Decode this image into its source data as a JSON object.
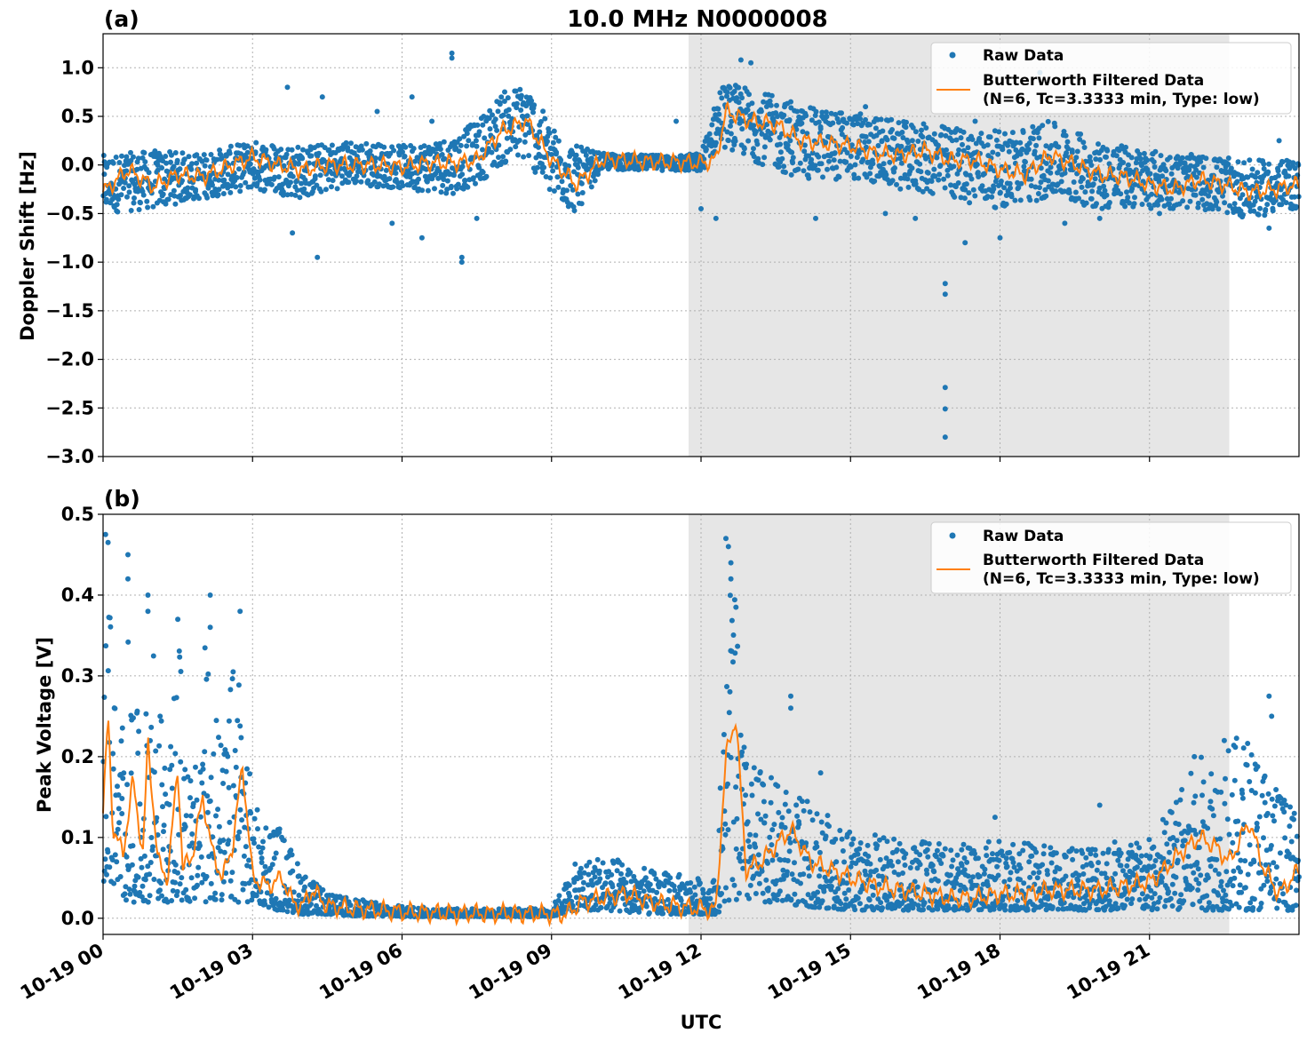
{
  "figure": {
    "title": "10.0 MHz N0000008",
    "xlabel": "UTC",
    "colors": {
      "raw": "#1f77b4",
      "filtered": "#ff7f0e",
      "shade": "#e6e6e6",
      "grid": "#b0b0b0"
    }
  },
  "chart_data": [
    {
      "type": "scatter",
      "panel_label": "(a)",
      "ylabel": "Doppler Shift [Hz]",
      "xlim": [
        "10-19 00",
        "10-20 00"
      ],
      "ylim": [
        -3.0,
        1.35
      ],
      "x_ticks": [
        "10-19 00",
        "10-19 03",
        "10-19 06",
        "10-19 09",
        "10-19 12",
        "10-19 15",
        "10-19 18",
        "10-19 21"
      ],
      "x_tick_labels_visible": false,
      "y_ticks": [
        1.0,
        0.5,
        0.0,
        -0.5,
        -1.0,
        -1.5,
        -2.0,
        -2.5,
        -3.0
      ],
      "y_tick_labels": [
        "1.0",
        "0.5",
        "0.0",
        "−0.5",
        "−1.0",
        "−1.5",
        "−2.0",
        "−2.5",
        "−3.0"
      ],
      "grid": true,
      "shaded_region_hours": [
        11.75,
        22.6
      ],
      "legend": {
        "placement": "top-right",
        "entries": [
          "Raw Data",
          "Butterworth Filtered Data",
          "(N=6, Tc=3.3333 min, Type: low)"
        ]
      },
      "series": [
        {
          "name": "Butterworth Filtered Data",
          "style": "line",
          "x_hours": [
            0,
            0.5,
            1,
            1.5,
            2,
            2.5,
            3,
            3.5,
            4,
            4.5,
            5,
            5.5,
            6,
            6.5,
            7,
            7.5,
            8,
            8.5,
            9,
            9.5,
            10,
            10.5,
            11,
            11.5,
            12,
            12.3,
            12.5,
            13,
            13.5,
            14,
            14.5,
            15,
            15.5,
            16,
            16.5,
            17,
            17.5,
            18,
            18.5,
            19,
            19.5,
            20,
            20.5,
            21,
            21.5,
            22,
            22.5,
            23,
            23.5,
            24
          ],
          "y": [
            -0.28,
            -0.05,
            -0.22,
            -0.1,
            -0.12,
            -0.02,
            0.08,
            0.0,
            -0.05,
            0.0,
            0.0,
            0.0,
            -0.02,
            0.02,
            0.02,
            0.05,
            0.35,
            0.45,
            0.05,
            -0.2,
            0.05,
            0.05,
            0.03,
            0.03,
            0.02,
            0.05,
            0.55,
            0.45,
            0.42,
            0.25,
            0.22,
            0.2,
            0.12,
            0.1,
            0.15,
            0.05,
            0.05,
            -0.05,
            -0.1,
            0.1,
            0.0,
            -0.1,
            -0.12,
            -0.2,
            -0.25,
            -0.15,
            -0.2,
            -0.28,
            -0.25,
            -0.2
          ]
        },
        {
          "name": "Raw Data",
          "style": "points",
          "envelope_hours": [
            0,
            1,
            2,
            3,
            4,
            5,
            6,
            7,
            7.5,
            8,
            8.5,
            9,
            9.5,
            10,
            11,
            12,
            12.4,
            13,
            14,
            15,
            16,
            17,
            18,
            19,
            20,
            21,
            22,
            23,
            24
          ],
          "upper": [
            0.1,
            0.15,
            0.12,
            0.25,
            0.2,
            0.25,
            0.2,
            0.3,
            0.45,
            0.75,
            0.85,
            0.4,
            0.2,
            0.12,
            0.1,
            0.12,
            0.85,
            0.8,
            0.6,
            0.55,
            0.45,
            0.4,
            0.35,
            0.45,
            0.25,
            0.15,
            0.1,
            0.05,
            0.05
          ],
          "lower": [
            -0.5,
            -0.45,
            -0.35,
            -0.25,
            -0.35,
            -0.2,
            -0.25,
            -0.3,
            -0.2,
            0.0,
            0.05,
            -0.35,
            -0.5,
            -0.05,
            -0.05,
            -0.08,
            0.2,
            0.05,
            -0.15,
            -0.15,
            -0.25,
            -0.35,
            -0.45,
            -0.35,
            -0.45,
            -0.45,
            -0.45,
            -0.55,
            -0.45
          ],
          "outliers": [
            [
              2.5,
              -0.2
            ],
            [
              3.7,
              0.8
            ],
            [
              3.8,
              -0.7
            ],
            [
              4.3,
              -0.95
            ],
            [
              4.4,
              0.7
            ],
            [
              5.5,
              0.55
            ],
            [
              5.8,
              -0.6
            ],
            [
              6.2,
              0.7
            ],
            [
              6.4,
              -0.75
            ],
            [
              6.6,
              0.45
            ],
            [
              7.0,
              1.15
            ],
            [
              7.0,
              1.1
            ],
            [
              7.2,
              -1.0
            ],
            [
              7.2,
              -0.95
            ],
            [
              7.4,
              0.4
            ],
            [
              7.5,
              -0.55
            ],
            [
              11.5,
              0.45
            ],
            [
              12.0,
              -0.45
            ],
            [
              12.3,
              -0.55
            ],
            [
              12.8,
              1.08
            ],
            [
              13.0,
              1.05
            ],
            [
              13.8,
              0.65
            ],
            [
              14.3,
              -0.55
            ],
            [
              15.3,
              0.6
            ],
            [
              15.7,
              -0.5
            ],
            [
              16.3,
              -0.55
            ],
            [
              16.9,
              -1.22
            ],
            [
              16.9,
              -1.33
            ],
            [
              16.9,
              -2.29
            ],
            [
              16.9,
              -2.51
            ],
            [
              16.9,
              -2.8
            ],
            [
              17.3,
              -0.8
            ],
            [
              17.5,
              0.45
            ],
            [
              18.0,
              -0.75
            ],
            [
              18.8,
              0.95
            ],
            [
              19.3,
              -0.6
            ],
            [
              20.0,
              -0.55
            ],
            [
              21.2,
              -0.5
            ],
            [
              23.4,
              -0.65
            ],
            [
              23.6,
              0.25
            ]
          ]
        }
      ]
    },
    {
      "type": "scatter",
      "panel_label": "(b)",
      "ylabel": "Peak Voltage [V]",
      "xlim": [
        "10-19 00",
        "10-20 00"
      ],
      "ylim": [
        -0.02,
        0.5
      ],
      "x_ticks": [
        "10-19 00",
        "10-19 03",
        "10-19 06",
        "10-19 09",
        "10-19 12",
        "10-19 15",
        "10-19 18",
        "10-19 21"
      ],
      "x_tick_labels": [
        "10-19 00",
        "10-19 03",
        "10-19 06",
        "10-19 09",
        "10-19 12",
        "10-19 15",
        "10-19 18",
        "10-19 21"
      ],
      "y_ticks": [
        0.5,
        0.4,
        0.3,
        0.2,
        0.1,
        0.0
      ],
      "y_tick_labels": [
        "0.5",
        "0.4",
        "0.3",
        "0.2",
        "0.1",
        "0.0"
      ],
      "grid": true,
      "shaded_region_hours": [
        11.75,
        22.6
      ],
      "legend": {
        "placement": "top-right",
        "entries": [
          "Raw Data",
          "Butterworth Filtered Data",
          "(N=6, Tc=3.3333 min, Type: low)"
        ]
      },
      "series": [
        {
          "name": "Butterworth Filtered Data",
          "style": "line",
          "x_hours": [
            0,
            0.1,
            0.2,
            0.4,
            0.6,
            0.8,
            0.9,
            1.1,
            1.3,
            1.5,
            1.6,
            1.8,
            2.0,
            2.2,
            2.4,
            2.6,
            2.8,
            3.0,
            3.3,
            3.6,
            3.8,
            4.0,
            4.2,
            4.5,
            5,
            6,
            7,
            8,
            9,
            9.3,
            9.6,
            10,
            10.5,
            11,
            11.5,
            12,
            12.3,
            12.5,
            12.7,
            12.9,
            13.2,
            13.5,
            13.8,
            14.2,
            14.6,
            15,
            15.5,
            16,
            16.5,
            17,
            17.5,
            18,
            18.5,
            19,
            19.5,
            20,
            20.5,
            21,
            21.3,
            21.6,
            22,
            22.3,
            22.6,
            23,
            23.3,
            23.6,
            24
          ],
          "y": [
            0.13,
            0.25,
            0.11,
            0.08,
            0.17,
            0.08,
            0.22,
            0.07,
            0.05,
            0.19,
            0.06,
            0.08,
            0.15,
            0.08,
            0.05,
            0.09,
            0.19,
            0.05,
            0.04,
            0.05,
            0.02,
            0.015,
            0.035,
            0.015,
            0.012,
            0.008,
            0.006,
            0.006,
            0.005,
            0.005,
            0.02,
            0.025,
            0.03,
            0.02,
            0.015,
            0.012,
            0.01,
            0.2,
            0.25,
            0.06,
            0.07,
            0.09,
            0.11,
            0.07,
            0.06,
            0.05,
            0.04,
            0.035,
            0.03,
            0.025,
            0.025,
            0.03,
            0.03,
            0.035,
            0.035,
            0.035,
            0.04,
            0.045,
            0.06,
            0.08,
            0.1,
            0.09,
            0.07,
            0.12,
            0.06,
            0.03,
            0.06
          ]
        },
        {
          "name": "Raw Data",
          "style": "points",
          "envelope_hours": [
            0,
            0.1,
            0.3,
            0.5,
            0.8,
            1.0,
            1.3,
            1.5,
            1.8,
            2.1,
            2.4,
            2.7,
            3.0,
            3.5,
            4.0,
            4.5,
            5,
            6,
            7,
            8,
            9,
            9.5,
            10,
            11,
            12,
            12.3,
            12.6,
            12.9,
            13.5,
            14,
            15,
            16,
            17,
            18,
            19,
            20,
            21,
            21.5,
            22,
            22.5,
            23,
            23.5,
            24
          ],
          "upper": [
            0.3,
            0.47,
            0.2,
            0.35,
            0.2,
            0.39,
            0.15,
            0.37,
            0.15,
            0.38,
            0.2,
            0.37,
            0.14,
            0.12,
            0.06,
            0.03,
            0.025,
            0.015,
            0.012,
            0.012,
            0.012,
            0.07,
            0.08,
            0.06,
            0.05,
            0.05,
            0.46,
            0.2,
            0.17,
            0.15,
            0.11,
            0.1,
            0.09,
            0.1,
            0.09,
            0.1,
            0.1,
            0.15,
            0.2,
            0.22,
            0.23,
            0.18,
            0.12
          ],
          "lower": [
            0.04,
            0.05,
            0.03,
            0.02,
            0.02,
            0.02,
            0.02,
            0.02,
            0.02,
            0.02,
            0.02,
            0.02,
            0.02,
            0.01,
            0.005,
            0.005,
            0.003,
            0.002,
            0.002,
            0.002,
            0.002,
            0.01,
            0.01,
            0.005,
            0.005,
            0.005,
            0.02,
            0.02,
            0.02,
            0.015,
            0.01,
            0.01,
            0.01,
            0.01,
            0.01,
            0.01,
            0.01,
            0.01,
            0.01,
            0.01,
            0.01,
            0.01,
            0.01
          ],
          "outliers": [
            [
              0.05,
              0.475
            ],
            [
              0.1,
              0.465
            ],
            [
              0.5,
              0.45
            ],
            [
              0.5,
              0.42
            ],
            [
              0.9,
              0.4
            ],
            [
              0.9,
              0.38
            ],
            [
              1.5,
              0.37
            ],
            [
              2.15,
              0.4
            ],
            [
              2.15,
              0.36
            ],
            [
              2.75,
              0.38
            ],
            [
              12.5,
              0.47
            ],
            [
              12.55,
              0.46
            ],
            [
              12.6,
              0.44
            ],
            [
              12.6,
              0.42
            ],
            [
              12.7,
              0.385
            ],
            [
              13.8,
              0.275
            ],
            [
              13.8,
              0.26
            ],
            [
              14.4,
              0.18
            ],
            [
              17.9,
              0.125
            ],
            [
              20.0,
              0.14
            ],
            [
              21.9,
              0.2
            ],
            [
              22.5,
              0.22
            ],
            [
              23.4,
              0.275
            ],
            [
              23.45,
              0.25
            ]
          ]
        }
      ]
    }
  ]
}
